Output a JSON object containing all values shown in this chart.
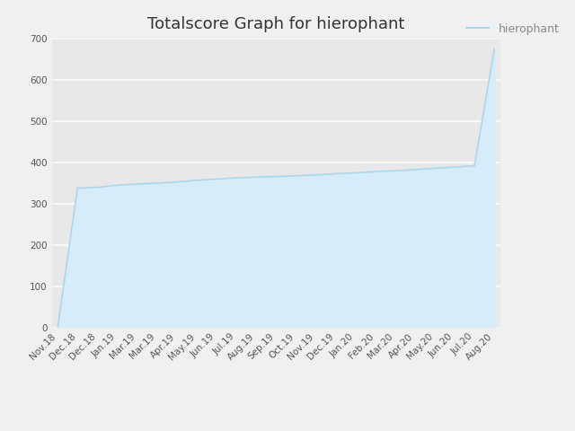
{
  "title": "Totalscore Graph for hierophant",
  "legend_label": "hierophant",
  "line_color": "#a8d8f0",
  "fill_color": "#d6ecf8",
  "background_color": "#f0f0f0",
  "plot_bg_color": "#e8e8e8",
  "grid_color": "#f8f8f8",
  "tick_labels": [
    "Nov.18",
    "Dec.18",
    "Dec.18",
    "Jan.19",
    "Mar.19",
    "Mar.19",
    "Apr.19",
    "May.19",
    "Jun.19",
    "Jul.19",
    "Aug.19",
    "Sep.19",
    "Oct.19",
    "Nov.19",
    "Dec.19",
    "Jan.20",
    "Feb.20",
    "Mar.20",
    "Apr.20",
    "May.20",
    "Jun.20",
    "Jul.20",
    "Aug.20"
  ],
  "x_values": [
    0,
    1,
    2,
    3,
    4,
    5,
    6,
    7,
    8,
    9,
    10,
    11,
    12,
    13,
    14,
    15,
    16,
    17,
    18,
    19,
    20,
    21,
    22
  ],
  "y_start_zero": [
    0,
    338,
    340,
    345,
    348,
    350,
    353,
    357,
    360,
    363,
    365,
    366,
    368,
    370,
    373,
    375,
    378,
    380,
    383,
    386,
    389,
    392,
    675
  ],
  "ylim": [
    0,
    700
  ],
  "yticks": [
    0,
    100,
    200,
    300,
    400,
    500,
    600,
    700
  ],
  "title_fontsize": 13,
  "tick_fontsize": 7.5,
  "legend_fontsize": 9,
  "legend_text_color": "#888888"
}
